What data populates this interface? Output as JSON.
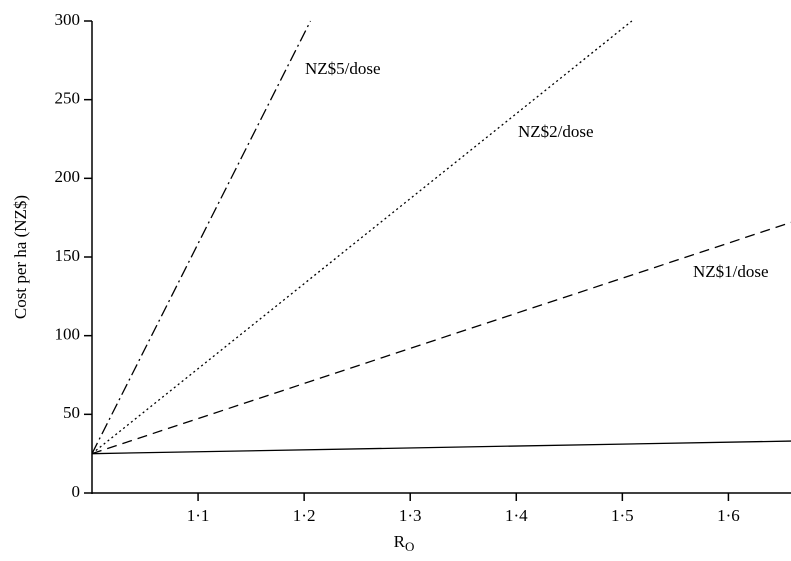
{
  "chart_data": {
    "type": "line",
    "ylabel": "Cost per ha (NZ$)",
    "xlabel": "R",
    "xlabel_subscript": "O",
    "xlim": [
      1.0,
      1.659
    ],
    "ylim": [
      0,
      300
    ],
    "xticks": [
      {
        "value": 1.1,
        "label": "1·1"
      },
      {
        "value": 1.2,
        "label": "1·2"
      },
      {
        "value": 1.3,
        "label": "1·3"
      },
      {
        "value": 1.4,
        "label": "1·4"
      },
      {
        "value": 1.5,
        "label": "1·5"
      },
      {
        "value": 1.6,
        "label": "1·6"
      }
    ],
    "yticks": [
      0,
      50,
      100,
      150,
      200,
      250,
      300
    ],
    "grid": false,
    "series": [
      {
        "color": "#000000",
        "linestyle": "solid",
        "x": [
          1.0,
          1.659
        ],
        "values": [
          25,
          33
        ]
      },
      {
        "name": "NZ$1/dose",
        "color": "#000000",
        "linestyle": "dashed",
        "x": [
          1.0,
          1.659
        ],
        "values": [
          25,
          172
        ]
      },
      {
        "name": "NZ$2/dose",
        "color": "#000000",
        "linestyle": "dotted",
        "x": [
          1.0,
          1.509
        ],
        "values": [
          25,
          300
        ]
      },
      {
        "name": "NZ$5/dose",
        "color": "#000000",
        "linestyle": "dashdot",
        "x": [
          1.0,
          1.206
        ],
        "values": [
          25,
          300
        ]
      }
    ]
  }
}
